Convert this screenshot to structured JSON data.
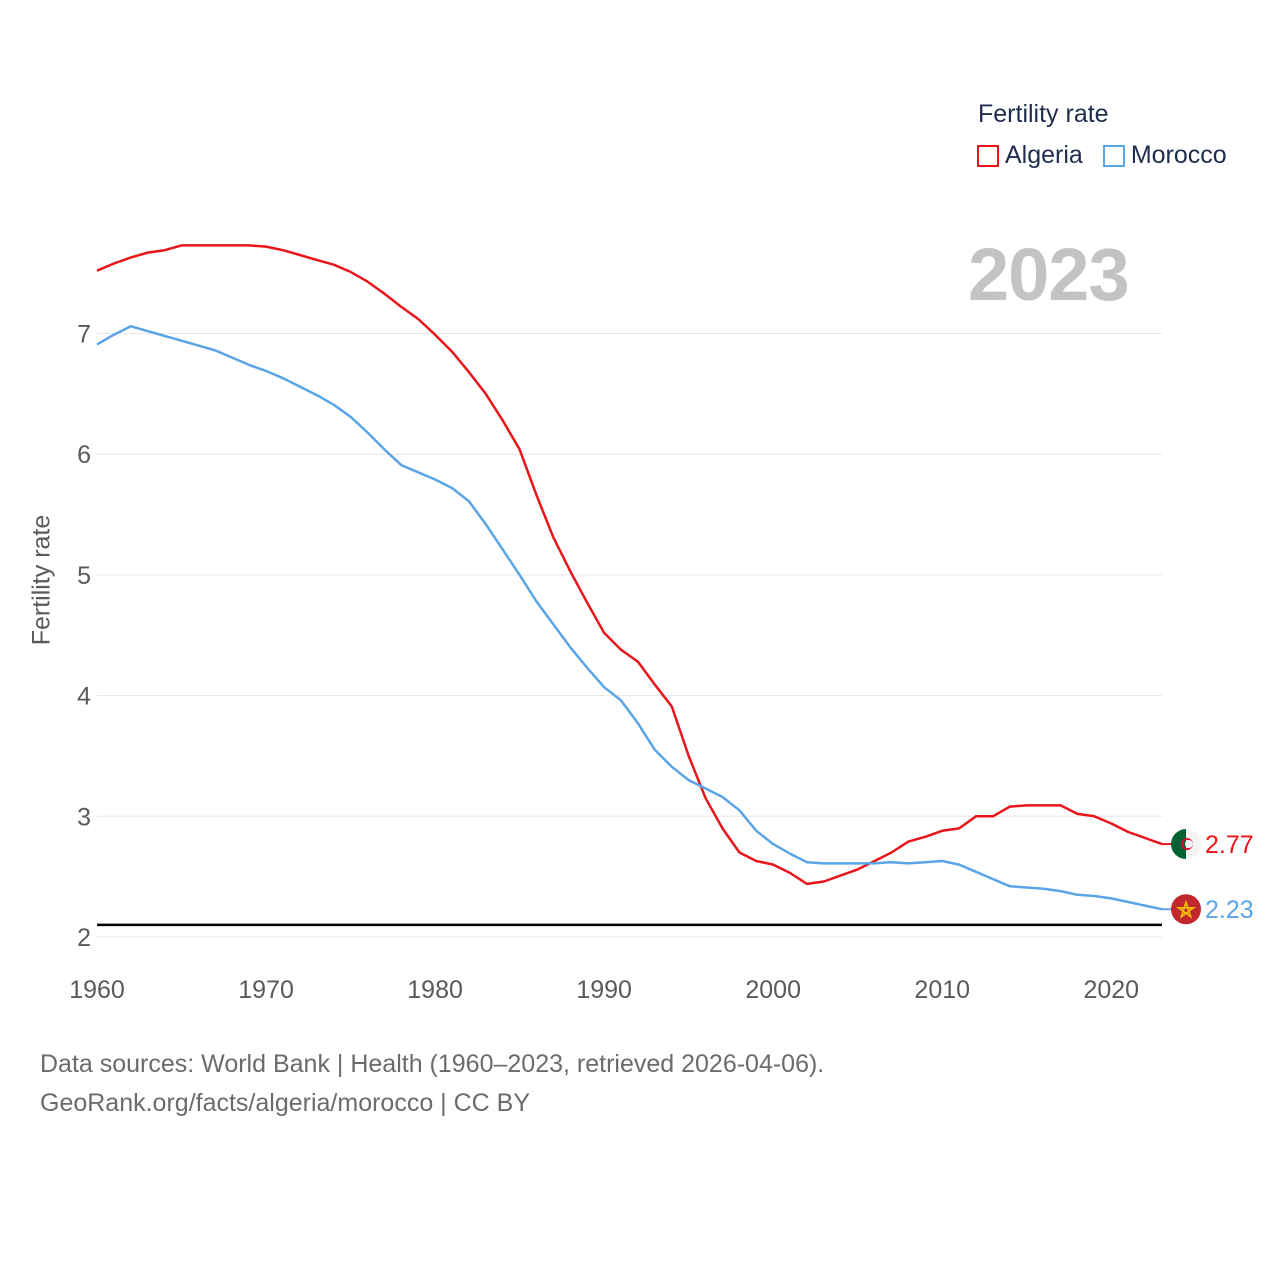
{
  "legend": {
    "title": "Fertility rate",
    "series": [
      {
        "name": "Algeria",
        "color": "#e8161a"
      },
      {
        "name": "Morocco",
        "color": "#5aa5e8"
      }
    ]
  },
  "year_label": "2023",
  "source": {
    "line1": "Data sources: World Bank | Health (1960–2023, retrieved 2026-04-06).",
    "line2": "GeoRank.org/facts/algeria/morocco | CC BY"
  },
  "chart_data": {
    "type": "line",
    "ylabel": "Fertility rate",
    "xlabel": "",
    "xlim": [
      1960,
      2023
    ],
    "ylim": [
      2,
      7.7
    ],
    "x_ticks": [
      1960,
      1970,
      1980,
      1990,
      2000,
      2010,
      2020
    ],
    "y_ticks": [
      2,
      3,
      4,
      5,
      6,
      7
    ],
    "reference_line": {
      "y": 2.1,
      "color": "#000000"
    },
    "x": [
      1960,
      1961,
      1962,
      1963,
      1964,
      1965,
      1966,
      1967,
      1968,
      1969,
      1970,
      1971,
      1972,
      1973,
      1974,
      1975,
      1976,
      1977,
      1978,
      1979,
      1980,
      1981,
      1982,
      1983,
      1984,
      1985,
      1986,
      1987,
      1988,
      1989,
      1990,
      1991,
      1992,
      1993,
      1994,
      1995,
      1996,
      1997,
      1998,
      1999,
      2000,
      2001,
      2002,
      2003,
      2004,
      2005,
      2006,
      2007,
      2008,
      2009,
      2010,
      2011,
      2012,
      2013,
      2014,
      2015,
      2016,
      2017,
      2018,
      2019,
      2020,
      2021,
      2022,
      2023
    ],
    "series": [
      {
        "name": "Algeria",
        "color": "#e8161a",
        "end_label": "2.77",
        "values": [
          7.52,
          7.58,
          7.63,
          7.67,
          7.69,
          7.73,
          7.73,
          7.73,
          7.73,
          7.73,
          7.72,
          7.69,
          7.65,
          7.61,
          7.57,
          7.51,
          7.43,
          7.33,
          7.22,
          7.12,
          6.99,
          6.85,
          6.68,
          6.5,
          6.28,
          6.04,
          5.66,
          5.31,
          5.03,
          4.77,
          4.52,
          4.38,
          4.28,
          4.09,
          3.91,
          3.5,
          3.15,
          2.9,
          2.7,
          2.63,
          2.6,
          2.53,
          2.44,
          2.46,
          2.51,
          2.56,
          2.63,
          2.7,
          2.79,
          2.83,
          2.88,
          2.9,
          3.0,
          3.0,
          3.08,
          3.09,
          3.09,
          3.09,
          3.02,
          3.0,
          2.94,
          2.87,
          2.82,
          2.77
        ]
      },
      {
        "name": "Morocco",
        "color": "#5aa5e8",
        "end_label": "2.23",
        "values": [
          6.91,
          6.99,
          7.06,
          7.02,
          6.98,
          6.94,
          6.9,
          6.86,
          6.8,
          6.74,
          6.69,
          6.63,
          6.56,
          6.49,
          6.41,
          6.31,
          6.18,
          6.04,
          5.91,
          5.85,
          5.79,
          5.72,
          5.61,
          5.42,
          5.21,
          5.0,
          4.78,
          4.59,
          4.4,
          4.23,
          4.07,
          3.96,
          3.77,
          3.55,
          3.41,
          3.3,
          3.23,
          3.16,
          3.05,
          2.88,
          2.77,
          2.69,
          2.62,
          2.61,
          2.61,
          2.61,
          2.61,
          2.62,
          2.61,
          2.62,
          2.63,
          2.6,
          2.54,
          2.48,
          2.42,
          2.41,
          2.4,
          2.38,
          2.35,
          2.34,
          2.32,
          2.29,
          2.26,
          2.23
        ]
      }
    ]
  }
}
